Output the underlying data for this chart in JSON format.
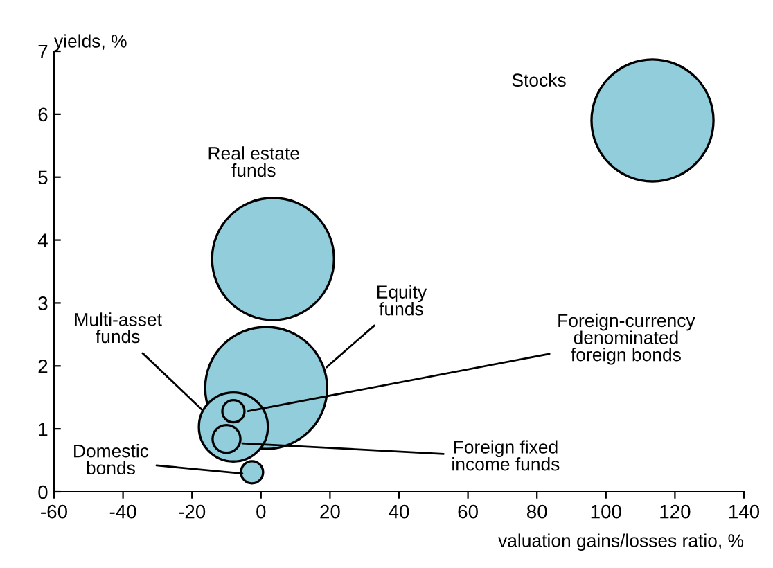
{
  "chart_data": {
    "type": "bubble",
    "xlabel": "valuation gains/losses ratio, %",
    "ylabel": "yields, %",
    "x": [
      113.5,
      3.5,
      1.5,
      -8,
      -8,
      -10,
      -2.6
    ],
    "series": [
      {
        "color": "#92cddc",
        "values": [
          5.9,
          3.7,
          1.65,
          1.03,
          1.28,
          0.84,
          0.31
        ],
        "sizes": [
          1,
          1,
          1,
          0.32,
          0.033,
          0.052,
          0.033
        ]
      }
    ],
    "annotations": [
      "Stocks",
      "Real estate\nfunds",
      {
        "text": "Equity\nfunds",
        "x": 19,
        "y": 1.98
      },
      {
        "text": "Multi-asset\nfunds",
        "x": -17,
        "y": 1.3
      },
      {
        "text": "Foreign-currency\ndenominated\nforeign bonds",
        "x": -3.8,
        "y": 1.28
      },
      {
        "text": "Foreign fixed\nincome funds",
        "x": -5.4,
        "y": 0.77
      },
      {
        "text": "Domestic\nbonds",
        "x": -5.4,
        "y": 0.29
      }
    ],
    "xlim": [
      -60,
      140
    ],
    "xticks": [
      -60,
      -40,
      -20,
      0,
      20,
      40,
      60,
      80,
      100,
      120,
      140
    ],
    "ylim": [
      0,
      7
    ],
    "yticks": [
      0,
      1,
      2,
      3,
      4,
      5,
      6,
      7
    ],
    "grid": false,
    "legend": false
  }
}
